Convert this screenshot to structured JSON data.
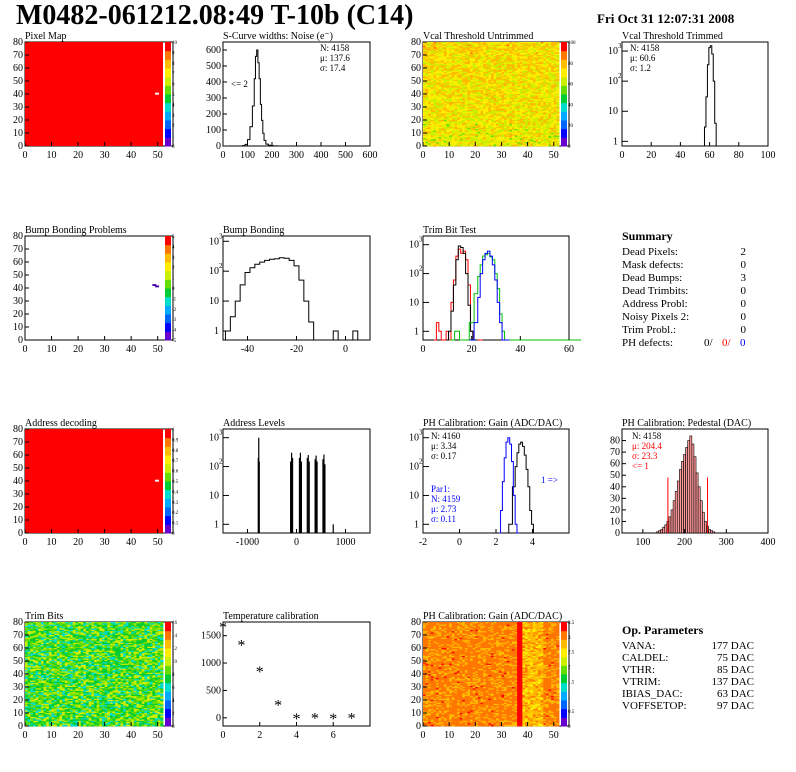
{
  "header": {
    "title": "M0482-061212.08:49 T-10b (C14)",
    "date": "Fri Oct 31 12:07:31 2008"
  },
  "colors": {
    "red": "#ff0000",
    "blue": "#0000ff",
    "green": "#00c000",
    "black": "#000000",
    "fill_hatch": "#cc0000"
  },
  "chart_data": [
    {
      "id": "pixel_map",
      "type": "heatmap",
      "title": "Pixel Map",
      "xlim": [
        0,
        52
      ],
      "ylim": [
        0,
        80
      ],
      "xticks": [
        0,
        10,
        20,
        30,
        40,
        50
      ],
      "yticks": [
        0,
        10,
        20,
        30,
        40,
        50,
        60,
        70,
        80
      ],
      "fill": "uniform-max",
      "zlim": [
        0,
        10
      ],
      "zticks": [
        0,
        1,
        2,
        3,
        4,
        5,
        6,
        7,
        8,
        9,
        10
      ],
      "outliers": [
        {
          "x": 49,
          "y": 40,
          "z": 0
        }
      ]
    },
    {
      "id": "scurve_widths",
      "type": "bar",
      "title": "S-Curve widths: Noise (e⁻)",
      "xlim": [
        0,
        600
      ],
      "ylim": [
        0,
        650
      ],
      "xticks": [
        0,
        100,
        200,
        300,
        400,
        500,
        600
      ],
      "yticks": [
        0,
        100,
        200,
        300,
        400,
        500,
        600
      ],
      "stats": {
        "N": "4158",
        "mu": "137.6",
        "sigma": "17.4"
      },
      "annotation": "<= 2",
      "x": [
        85,
        95,
        105,
        115,
        125,
        130,
        135,
        140,
        145,
        150,
        155,
        160,
        165,
        170,
        180,
        190,
        200,
        210,
        220
      ],
      "values": [
        2,
        10,
        40,
        120,
        250,
        420,
        560,
        600,
        520,
        420,
        260,
        160,
        80,
        35,
        12,
        5,
        2,
        1,
        1
      ]
    },
    {
      "id": "vcal_untrimmed",
      "type": "heatmap",
      "title": "Vcal Threshold Untrimmed",
      "xlim": [
        0,
        52
      ],
      "ylim": [
        0,
        80
      ],
      "xticks": [
        0,
        10,
        20,
        30,
        40,
        50
      ],
      "yticks": [
        0,
        10,
        20,
        30,
        40,
        50,
        60,
        70,
        80
      ],
      "fill": "noisy-high",
      "zticks": [
        0,
        20,
        40,
        60,
        80,
        100
      ]
    },
    {
      "id": "vcal_trimmed",
      "type": "bar",
      "title": "Vcal Threshold Trimmed",
      "xlim": [
        0,
        100
      ],
      "ylim_log": [
        0.7,
        2000
      ],
      "xticks": [
        0,
        20,
        40,
        60,
        80,
        100
      ],
      "yticks_log": [
        1,
        10,
        100,
        1000
      ],
      "stats": {
        "N": "4158",
        "mu": "60.6",
        "sigma": "1.2"
      },
      "x": [
        57,
        58,
        59,
        60,
        61,
        62,
        63,
        64
      ],
      "values": [
        3,
        30,
        350,
        1300,
        1500,
        800,
        100,
        4
      ]
    },
    {
      "id": "bump_problems",
      "type": "heatmap",
      "title": "Bump Bonding Problems",
      "xlim": [
        0,
        52
      ],
      "ylim": [
        0,
        80
      ],
      "xticks": [
        0,
        10,
        20,
        30,
        40,
        50
      ],
      "yticks": [
        0,
        10,
        20,
        30,
        40,
        50,
        60,
        70,
        80
      ],
      "fill": "empty",
      "zticks": [
        -5,
        -4,
        -3,
        -2,
        -1,
        0,
        1,
        2,
        3,
        4,
        5
      ],
      "outliers": [
        {
          "x": 48,
          "y": 42,
          "z": -4
        },
        {
          "x": 49,
          "y": 41,
          "z": -4
        }
      ]
    },
    {
      "id": "bump_bonding",
      "type": "bar",
      "title": "Bump Bonding",
      "xlim": [
        -50,
        10
      ],
      "ylim_log": [
        0.5,
        1500
      ],
      "xticks": [
        -40,
        -20,
        0
      ],
      "yticks_log": [
        1,
        10,
        100,
        1000
      ],
      "x": [
        -48,
        -46,
        -44,
        -42,
        -40,
        -38,
        -36,
        -34,
        -32,
        -30,
        -28,
        -26,
        -24,
        -22,
        -20,
        -18,
        -16,
        -14,
        -12,
        -10,
        -8,
        -6,
        -4,
        -2,
        0,
        2,
        4
      ],
      "values": [
        1,
        3,
        10,
        35,
        90,
        130,
        170,
        200,
        230,
        250,
        260,
        280,
        270,
        230,
        150,
        50,
        10,
        2,
        0,
        0,
        0,
        0,
        1,
        0,
        0,
        0,
        1
      ]
    },
    {
      "id": "trim_bit_test",
      "type": "line",
      "title": "Trim Bit Test",
      "xlim": [
        0,
        60
      ],
      "ylim_log": [
        0.5,
        2000
      ],
      "xticks": [
        0,
        20,
        40,
        60
      ],
      "yticks_log": [
        1,
        10,
        100,
        1000
      ],
      "series": [
        {
          "color": "#ff0000",
          "x": [
            5,
            6,
            7,
            8,
            9,
            10,
            11,
            12,
            13,
            14,
            15,
            16,
            17,
            18,
            19,
            20,
            21,
            22,
            23,
            24
          ],
          "values": [
            0.5,
            2,
            1,
            0.5,
            0.5,
            1,
            0.5,
            10,
            60,
            400,
            700,
            500,
            600,
            300,
            40,
            1,
            0.5,
            0.5,
            0.5,
            0.5
          ]
        },
        {
          "color": "#000000",
          "x": [
            10,
            11,
            12,
            13,
            14,
            15,
            16,
            17,
            18,
            19,
            20,
            21,
            22
          ],
          "values": [
            0.5,
            1,
            5,
            40,
            300,
            900,
            800,
            500,
            100,
            8,
            1,
            0.5,
            0.5
          ]
        },
        {
          "color": "#00c000",
          "x": [
            12,
            14,
            16,
            18,
            20,
            22,
            23,
            24,
            25,
            26,
            27,
            28,
            29,
            30,
            31,
            32,
            33,
            34,
            35,
            36,
            40,
            50,
            60
          ],
          "values": [
            0.5,
            1,
            0.5,
            0.5,
            2,
            20,
            80,
            200,
            400,
            450,
            500,
            380,
            300,
            100,
            30,
            4,
            1,
            0.5,
            0.5,
            0.5,
            0.5,
            0.5,
            0.5
          ]
        },
        {
          "color": "#0000ff",
          "x": [
            20,
            22,
            23,
            24,
            25,
            26,
            27,
            28,
            29,
            30,
            31,
            32,
            33,
            34,
            35
          ],
          "values": [
            0.5,
            2,
            15,
            100,
            300,
            500,
            600,
            400,
            200,
            60,
            10,
            2,
            0.5,
            0.5,
            0.5
          ]
        }
      ]
    },
    {
      "id": "address_decoding",
      "type": "heatmap",
      "title": "Address decoding",
      "xlim": [
        0,
        52
      ],
      "ylim": [
        0,
        80
      ],
      "xticks": [
        0,
        10,
        20,
        30,
        40,
        50
      ],
      "yticks": [
        0,
        10,
        20,
        30,
        40,
        50,
        60,
        70,
        80
      ],
      "fill": "uniform-max",
      "zlim": [
        0,
        1
      ],
      "zticks": [
        0,
        0.1,
        0.2,
        0.3,
        0.4,
        0.5,
        0.6,
        0.7,
        0.8,
        0.9,
        1
      ],
      "outliers": [
        {
          "x": 49,
          "y": 40,
          "z": 0
        }
      ]
    },
    {
      "id": "address_levels",
      "type": "bar",
      "title": "Address Levels",
      "xlim": [
        -1500,
        1500
      ],
      "ylim_log": [
        0.5,
        2000
      ],
      "xticks": [
        -1000,
        0,
        1000
      ],
      "yticks_log": [
        1,
        10,
        100,
        1000
      ],
      "x": [
        -780,
        -770,
        -760,
        -120,
        -100,
        -80,
        60,
        80,
        100,
        220,
        240,
        260,
        380,
        400,
        420,
        540,
        560,
        580,
        750
      ],
      "values": [
        200,
        1000,
        150,
        150,
        300,
        200,
        200,
        300,
        150,
        200,
        250,
        150,
        180,
        240,
        150,
        180,
        260,
        120,
        1
      ]
    },
    {
      "id": "ph_gain",
      "type": "line",
      "title": "PH Calibration: Gain (ADC/DAC)",
      "xlim": [
        -2,
        6
      ],
      "ylim_log": [
        0.5,
        2000
      ],
      "xticks": [
        -2,
        0,
        2,
        4
      ],
      "yticks_log": [
        1,
        10,
        100,
        1000
      ],
      "stats_black": {
        "N": "4160",
        "mu": "3.34",
        "sigma": "0.17"
      },
      "stats_blue": {
        "label": "Par1:",
        "N": "4159",
        "mu": "2.73",
        "sigma": "0.11"
      },
      "annotation": "1 =>",
      "series": [
        {
          "color": "#000000",
          "x": [
            2.6,
            2.8,
            3.0,
            3.1,
            3.2,
            3.3,
            3.4,
            3.5,
            3.6,
            3.7,
            3.8,
            3.9,
            4.0,
            4.1
          ],
          "values": [
            0.5,
            1,
            20,
            100,
            300,
            600,
            700,
            500,
            250,
            80,
            20,
            3,
            1,
            0.5
          ]
        },
        {
          "color": "#0000ff",
          "x": [
            2.2,
            2.3,
            2.4,
            2.5,
            2.6,
            2.7,
            2.8,
            2.9,
            3.0,
            3.1,
            3.2
          ],
          "values": [
            0.5,
            3,
            30,
            200,
            700,
            1000,
            600,
            150,
            10,
            1,
            0.5
          ]
        }
      ]
    },
    {
      "id": "ph_pedestal",
      "type": "bar",
      "title": "PH Calibration: Pedestal (DAC)",
      "xlim": [
        50,
        400
      ],
      "ylim": [
        0,
        90
      ],
      "xticks": [
        100,
        200,
        300,
        400
      ],
      "yticks": [
        0,
        10,
        20,
        30,
        40,
        50,
        60,
        70,
        80
      ],
      "stats_black": {
        "N": "4158"
      },
      "stats_red": {
        "mu": "204.4",
        "sigma": "23.3",
        "note": "<= 1"
      },
      "x": [
        135,
        140,
        145,
        150,
        155,
        160,
        165,
        170,
        175,
        180,
        185,
        190,
        195,
        200,
        205,
        210,
        215,
        220,
        225,
        230,
        235,
        240,
        245,
        250,
        255,
        260,
        265,
        270
      ],
      "values": [
        1,
        2,
        3,
        5,
        7,
        10,
        14,
        20,
        28,
        36,
        45,
        55,
        62,
        68,
        74,
        80,
        84,
        77,
        66,
        52,
        40,
        28,
        18,
        10,
        6,
        3,
        2,
        1
      ]
    },
    {
      "id": "trim_bits",
      "type": "heatmap",
      "title": "Trim Bits",
      "xlim": [
        0,
        52
      ],
      "ylim": [
        0,
        80
      ],
      "xticks": [
        0,
        10,
        20,
        30,
        40,
        50
      ],
      "yticks": [
        0,
        10,
        20,
        30,
        40,
        50,
        60,
        70,
        80
      ],
      "fill": "noisy-mid",
      "zticks": [
        0,
        2,
        4,
        6,
        8,
        10,
        12,
        14,
        16
      ]
    },
    {
      "id": "temperature_calibration",
      "type": "scatter",
      "title": "Temperature calibration",
      "xlim": [
        0,
        8
      ],
      "ylim": [
        -150,
        1750
      ],
      "xticks": [
        0,
        2,
        4,
        6
      ],
      "yticks": [
        0,
        500,
        1000,
        1500
      ],
      "x": [
        0,
        1,
        2,
        3,
        4,
        5,
        6,
        7
      ],
      "values": [
        1650,
        1320,
        840,
        220,
        -20,
        -10,
        -20,
        -10
      ]
    },
    {
      "id": "ph_gain_map",
      "type": "heatmap",
      "title": "PH Calibration: Gain (ADC/DAC)",
      "xlim": [
        0,
        52
      ],
      "ylim": [
        0,
        80
      ],
      "xticks": [
        0,
        10,
        20,
        30,
        40,
        50
      ],
      "yticks": [
        0,
        10,
        20,
        30,
        40,
        50,
        60,
        70,
        80
      ],
      "fill": "noisy-gain",
      "zticks": [
        0,
        0.5,
        1,
        1.5,
        2,
        2.5,
        3,
        3.5
      ]
    }
  ],
  "summary": {
    "title": "Summary",
    "rows": [
      {
        "label": "Dead Pixels:",
        "value": "2"
      },
      {
        "label": "Mask defects:",
        "value": "0"
      },
      {
        "label": "Dead Bumps:",
        "value": "3"
      },
      {
        "label": "Dead Trimbits:",
        "value": "0"
      },
      {
        "label": "Address Probl:",
        "value": "0"
      },
      {
        "label": "Noisy Pixels 2:",
        "value": "0"
      },
      {
        "label": "Trim Probl.:",
        "value": "0"
      }
    ],
    "ph_defects": {
      "label": "PH defects:",
      "v1": "0/",
      "v2": "0/",
      "v3": "0"
    }
  },
  "op_params": {
    "title": "Op. Parameters",
    "rows": [
      {
        "label": "VANA:",
        "value": "177 DAC"
      },
      {
        "label": "CALDEL:",
        "value": "75 DAC"
      },
      {
        "label": "VTHR:",
        "value": "85 DAC"
      },
      {
        "label": "VTRIM:",
        "value": "137 DAC"
      },
      {
        "label": "IBIAS_DAC:",
        "value": "63 DAC"
      },
      {
        "label": "VOFFSETOP:",
        "value": "97 DAC"
      }
    ]
  }
}
